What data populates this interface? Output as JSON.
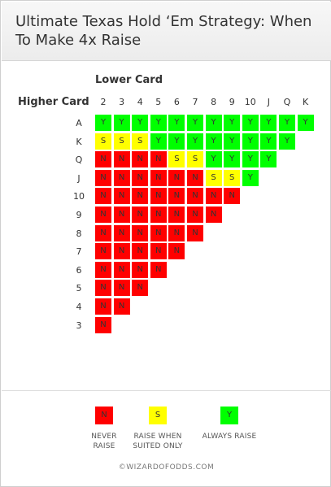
{
  "title": "Ultimate Texas Hold ‘Em Strategy: When To Make 4x Raise",
  "chart_data": {
    "type": "heatmap",
    "title": "Ultimate Texas Hold ‘Em Strategy: When To Make 4x Raise",
    "xlabel": "Lower Card",
    "ylabel": "Higher Card",
    "columns": [
      "2",
      "3",
      "4",
      "5",
      "6",
      "7",
      "8",
      "9",
      "10",
      "J",
      "Q",
      "K"
    ],
    "rows": [
      {
        "label": "A",
        "cells": [
          "Y",
          "Y",
          "Y",
          "Y",
          "Y",
          "Y",
          "Y",
          "Y",
          "Y",
          "Y",
          "Y",
          "Y"
        ]
      },
      {
        "label": "K",
        "cells": [
          "S",
          "S",
          "S",
          "Y",
          "Y",
          "Y",
          "Y",
          "Y",
          "Y",
          "Y",
          "Y"
        ]
      },
      {
        "label": "Q",
        "cells": [
          "N",
          "N",
          "N",
          "N",
          "S",
          "S",
          "Y",
          "Y",
          "Y",
          "Y"
        ]
      },
      {
        "label": "J",
        "cells": [
          "N",
          "N",
          "N",
          "N",
          "N",
          "N",
          "S",
          "S",
          "Y"
        ]
      },
      {
        "label": "10",
        "cells": [
          "N",
          "N",
          "N",
          "N",
          "N",
          "N",
          "N",
          "N"
        ]
      },
      {
        "label": "9",
        "cells": [
          "N",
          "N",
          "N",
          "N",
          "N",
          "N",
          "N"
        ]
      },
      {
        "label": "8",
        "cells": [
          "N",
          "N",
          "N",
          "N",
          "N",
          "N"
        ]
      },
      {
        "label": "7",
        "cells": [
          "N",
          "N",
          "N",
          "N",
          "N"
        ]
      },
      {
        "label": "6",
        "cells": [
          "N",
          "N",
          "N",
          "N"
        ]
      },
      {
        "label": "5",
        "cells": [
          "N",
          "N",
          "N"
        ]
      },
      {
        "label": "4",
        "cells": [
          "N",
          "N"
        ]
      },
      {
        "label": "3",
        "cells": [
          "N"
        ]
      }
    ],
    "colors": {
      "N": "#ff0000",
      "S": "#ffff00",
      "Y": "#00ff00"
    }
  },
  "legend": [
    {
      "code": "N",
      "line1": "NEVER",
      "line2": "RAISE",
      "color": "#ff0000"
    },
    {
      "code": "S",
      "line1": "RAISE WHEN",
      "line2": "SUITED ONLY",
      "color": "#ffff00"
    },
    {
      "code": "Y",
      "line1": "ALWAYS RAISE",
      "line2": "",
      "color": "#00ff00"
    }
  ],
  "footer": "©WIZARDOFODDS.COM"
}
